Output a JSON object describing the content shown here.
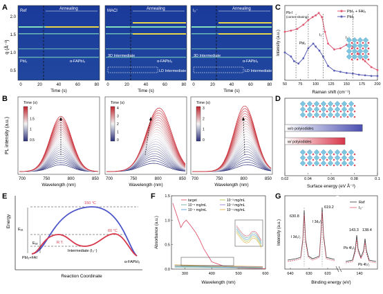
{
  "colors": {
    "ref_red": "#e0566f",
    "pbi2_blue": "#5b5fb5",
    "hm_bg": "#1b3f9e",
    "hm_band": "#8ff0c0",
    "annealed": "#e8d84a"
  },
  "panel_A": {
    "letter": "A",
    "ylabel": "q (Å⁻¹)",
    "xlabel": "Time (s)",
    "xticks": [
      "0",
      "20",
      "40",
      "60",
      "80"
    ],
    "yticks": [
      "0.5",
      "1.0",
      "1.5",
      "2.0"
    ],
    "panels": [
      {
        "label": "Ref",
        "anneal": "Annealing",
        "notes": [
          "PbI₂",
          "α-FAPbI₃"
        ]
      },
      {
        "label": "MACl",
        "anneal": "Annealing",
        "notes": [
          "3D Intermediate",
          "α-FAPbI₃",
          "LD Intermediate"
        ]
      },
      {
        "label": "I₃⁻",
        "anneal": "Annealing",
        "notes": [
          "3D Intermediate",
          "α-FAPbI₃",
          "LD Intermediate"
        ]
      }
    ]
  },
  "panel_B": {
    "letter": "B",
    "ylabel": "PL intensity (a.u.)",
    "xlabel": "Wavelength (nm)",
    "xticks": [
      "700",
      "750",
      "800",
      "850"
    ],
    "cbar_title": "Time (s)",
    "cbars": [
      [
        "2",
        "1.5",
        "1",
        "0.5"
      ],
      [
        "4",
        "3",
        "2",
        "1",
        "0"
      ],
      [
        "3",
        "2",
        "1",
        "0"
      ]
    ]
  },
  "chart_data": [
    {
      "type": "line",
      "panel": "C",
      "xlabel": "Raman shift (cm⁻¹)",
      "ylabel": "Intensity (a.u.)",
      "xlim": [
        50,
        200
      ],
      "xticks": [
        "50",
        "75",
        "100",
        "125",
        "150",
        "175",
        "200"
      ],
      "series": [
        {
          "name": "PbI₂ + FAI₃",
          "color": "#e0566f",
          "x": [
            50,
            60,
            70,
            80,
            88,
            95,
            100,
            105,
            110,
            115,
            120,
            130,
            140,
            150,
            160,
            170,
            180,
            190,
            200
          ],
          "y": [
            0.8,
            0.82,
            0.85,
            0.92,
            1.0,
            1.05,
            1.08,
            1.12,
            1.05,
            0.8,
            0.6,
            0.5,
            0.52,
            0.58,
            0.55,
            0.42,
            0.3,
            0.2,
            0.15
          ]
        },
        {
          "name": "PbI₂",
          "color": "#5b5fb5",
          "x": [
            50,
            60,
            65,
            72,
            80,
            88,
            96,
            100,
            106,
            112,
            120,
            130,
            140,
            150,
            160,
            170,
            180,
            190,
            200
          ],
          "y": [
            0.45,
            0.38,
            0.3,
            0.26,
            0.35,
            0.52,
            0.6,
            0.55,
            0.48,
            0.38,
            0.22,
            0.14,
            0.12,
            0.1,
            0.09,
            0.07,
            0.06,
            0.05,
            0.05
          ]
        }
      ],
      "annotations": [
        "Pb-I",
        "(corner sharing)",
        "PbIₓ",
        "I₃⁻",
        "I₃⁻"
      ]
    },
    {
      "type": "bar",
      "panel": "D",
      "xlabel": "Surface energy (eV Å⁻²)",
      "xlim": [
        0.02,
        0.1
      ],
      "xticks": [
        "0.02",
        "0.04",
        "0.06",
        "0.08",
        "0.1"
      ],
      "categories": [
        "w/o polyiodides",
        "w/ polyiodides"
      ],
      "values": [
        0.087,
        0.072
      ]
    },
    {
      "type": "line",
      "panel": "E",
      "xlabel": "Reaction Coordinate",
      "ylabel": "Energy",
      "labels": [
        "150 °C",
        "60 °C",
        "R.T.",
        "Intermediate (I₃⁻)",
        "PbI₂+FAI",
        "α-FAPbI₃",
        "Eₐ₁",
        "Eₐ₂"
      ]
    },
    {
      "type": "line",
      "panel": "F",
      "xlabel": "Wavelength (nm)",
      "ylabel": "Absorbance (a.u.)",
      "xlim": [
        250,
        600
      ],
      "ylim": [
        0,
        1.5
      ],
      "xticks": [
        "300",
        "400",
        "500",
        "600"
      ],
      "yticks": [
        "0.0",
        "0.5",
        "1.0",
        "1.5"
      ],
      "legend": [
        "target",
        "10⁻⁵ mg/mL",
        "10⁻⁴ mg/mL",
        "10⁻³ mg/mL",
        "10⁻² mg/mL",
        "10⁻¹ mg/mL"
      ],
      "series": [
        {
          "name": "target",
          "color": "#e0566f",
          "x": [
            255,
            270,
            285,
            295,
            305,
            320,
            340,
            355,
            370,
            400,
            450,
            500,
            600
          ],
          "y": [
            1.35,
            1.1,
            0.85,
            0.95,
            1.0,
            0.9,
            0.75,
            0.6,
            0.42,
            0.15,
            0.05,
            0.02,
            0.01
          ]
        }
      ]
    },
    {
      "type": "line",
      "panel": "G",
      "xlabel": "Binding energy (eV)",
      "ylabel": "Intensity (a.u.)",
      "xticks": [
        "640",
        "630",
        "620",
        "140"
      ],
      "legend": [
        "Ref",
        "I₃⁻"
      ],
      "peaks": [
        "630.8",
        "619.2",
        "143.3",
        "138.4"
      ],
      "peak_labels": [
        "I 3d₃/₂",
        "I 3d₅/₂",
        "Pb 4f₅/₂",
        "Pb 4f₇/₂"
      ]
    }
  ],
  "panel_letters": {
    "C": "C",
    "D": "D",
    "E": "E",
    "F": "F",
    "G": "G"
  }
}
